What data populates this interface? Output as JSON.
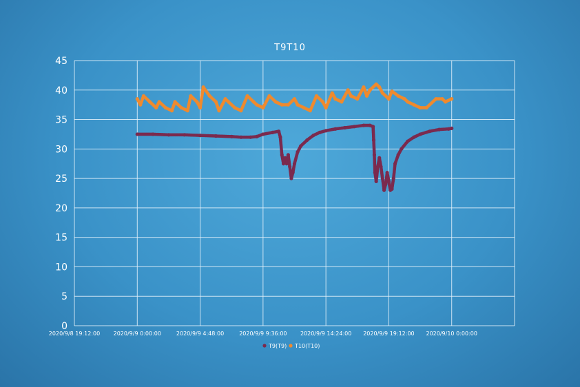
{
  "chart_data": {
    "type": "scatter",
    "title": "T9T10",
    "xlabel": "",
    "ylabel": "",
    "ylim": [
      0,
      45
    ],
    "y_ticks": [
      0,
      5,
      10,
      15,
      20,
      25,
      30,
      35,
      40,
      45
    ],
    "xlim": [
      -0.2,
      1.2
    ],
    "x_tick_values": [
      -0.2,
      0.0,
      0.2,
      0.4,
      0.6,
      0.8,
      1.0
    ],
    "x_tick_labels": [
      "2020/9/8 19:12:00",
      "2020/9/9 0:00:00",
      "2020/9/9 4:48:00",
      "2020/9/9 9:36:00",
      "2020/9/9 14:24:00",
      "2020/9/9 19:12:00",
      "2020/9/10 0:00:00"
    ],
    "grid": true,
    "legend_position": "bottom",
    "series": [
      {
        "name": "T9(T9)",
        "color": "#7b2a4e",
        "x": [
          0.0,
          0.05,
          0.1,
          0.15,
          0.2,
          0.25,
          0.3,
          0.33,
          0.36,
          0.38,
          0.4,
          0.43,
          0.45,
          0.455,
          0.46,
          0.465,
          0.47,
          0.475,
          0.48,
          0.485,
          0.49,
          0.495,
          0.5,
          0.51,
          0.52,
          0.54,
          0.56,
          0.58,
          0.6,
          0.63,
          0.66,
          0.69,
          0.72,
          0.74,
          0.75,
          0.752,
          0.754,
          0.756,
          0.76,
          0.765,
          0.77,
          0.775,
          0.78,
          0.785,
          0.79,
          0.795,
          0.8,
          0.805,
          0.81,
          0.815,
          0.82,
          0.83,
          0.84,
          0.86,
          0.88,
          0.9,
          0.93,
          0.96,
          0.99,
          1.0
        ],
        "y": [
          32.5,
          32.5,
          32.4,
          32.4,
          32.3,
          32.2,
          32.1,
          32.0,
          32.0,
          32.1,
          32.5,
          32.8,
          33.0,
          32.0,
          29.0,
          27.5,
          28.5,
          27.5,
          29.0,
          27.0,
          25.0,
          26.0,
          27.5,
          29.5,
          30.5,
          31.5,
          32.3,
          32.8,
          33.1,
          33.4,
          33.6,
          33.8,
          34.0,
          34.0,
          33.8,
          31.5,
          29.0,
          26.0,
          24.5,
          27.0,
          28.5,
          27.0,
          25.0,
          23.0,
          24.0,
          26.0,
          24.5,
          23.0,
          23.2,
          25.0,
          27.5,
          29.0,
          30.0,
          31.3,
          32.0,
          32.5,
          33.0,
          33.3,
          33.4,
          33.5
        ]
      },
      {
        "name": "T10(T10)",
        "color": "#ef8a2e",
        "x": [
          0.0,
          0.01,
          0.02,
          0.04,
          0.06,
          0.07,
          0.09,
          0.11,
          0.12,
          0.14,
          0.16,
          0.17,
          0.19,
          0.2,
          0.21,
          0.23,
          0.25,
          0.26,
          0.28,
          0.29,
          0.31,
          0.33,
          0.35,
          0.37,
          0.38,
          0.4,
          0.42,
          0.44,
          0.46,
          0.48,
          0.5,
          0.51,
          0.53,
          0.55,
          0.57,
          0.59,
          0.6,
          0.62,
          0.63,
          0.65,
          0.67,
          0.68,
          0.7,
          0.72,
          0.73,
          0.74,
          0.76,
          0.77,
          0.78,
          0.8,
          0.81,
          0.83,
          0.85,
          0.86,
          0.88,
          0.9,
          0.92,
          0.95,
          0.97,
          0.98,
          1.0
        ],
        "y": [
          38.5,
          37.5,
          39.0,
          38.0,
          37.0,
          38.0,
          37.0,
          36.5,
          38.0,
          37.0,
          36.5,
          39.0,
          38.0,
          37.0,
          40.5,
          39.0,
          38.0,
          36.5,
          38.5,
          38.0,
          37.0,
          36.5,
          39.0,
          38.0,
          37.5,
          37.0,
          39.0,
          38.0,
          37.5,
          37.5,
          38.5,
          37.5,
          37.0,
          36.5,
          39.0,
          38.0,
          37.0,
          39.5,
          38.5,
          38.0,
          40.0,
          39.0,
          38.5,
          40.5,
          39.0,
          40.0,
          41.0,
          40.5,
          39.5,
          38.5,
          39.8,
          39.0,
          38.5,
          38.0,
          37.5,
          37.0,
          37.0,
          38.5,
          38.5,
          38.0,
          38.5
        ]
      }
    ]
  }
}
